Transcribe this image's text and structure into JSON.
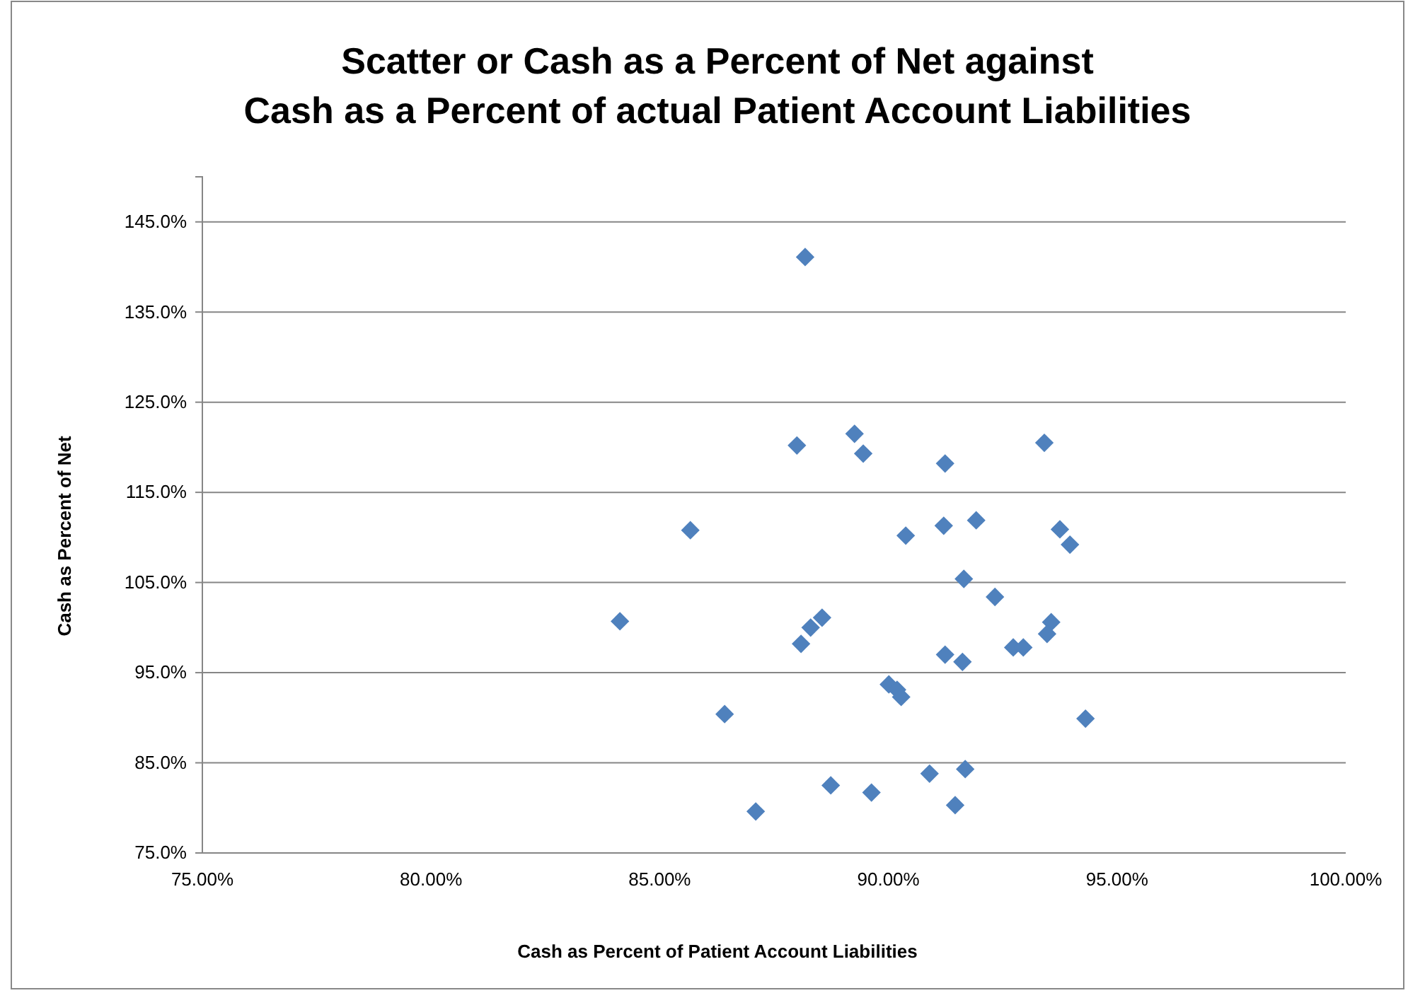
{
  "chart_data": {
    "type": "scatter",
    "title": "Scatter or Cash as a Percent of Net against\nCash as a Percent of actual Patient Account Liabilities",
    "xlabel": "Cash as Percent of Patient Account Liabilities",
    "ylabel": "Cash as Percent of Net",
    "x": [
      88.18,
      89.26,
      88.0,
      89.45,
      91.24,
      93.41,
      85.67,
      90.38,
      91.21,
      91.92,
      93.75,
      93.97,
      91.65,
      92.33,
      84.13,
      88.55,
      88.3,
      88.09,
      93.56,
      93.47,
      92.73,
      92.95,
      91.24,
      91.62,
      90.01,
      90.19,
      90.28,
      86.42,
      94.31,
      90.9,
      91.68,
      88.74,
      89.63,
      91.46,
      87.1
    ],
    "series": [
      {
        "color": "#4f81bd",
        "values": [
          141.1,
          121.5,
          120.2,
          119.3,
          118.2,
          120.5,
          110.8,
          110.2,
          111.3,
          111.9,
          110.9,
          109.2,
          105.4,
          103.4,
          100.7,
          101.1,
          100.0,
          98.2,
          100.6,
          99.3,
          97.8,
          97.8,
          97.0,
          96.2,
          93.7,
          93.1,
          92.3,
          90.4,
          89.9,
          83.8,
          84.3,
          82.5,
          81.7,
          80.3,
          79.6
        ]
      }
    ],
    "xlim": [
      75,
      100
    ],
    "xticks": [
      {
        "value": 75,
        "label": "75.00%"
      },
      {
        "value": 80,
        "label": "80.00%"
      },
      {
        "value": 85,
        "label": "85.00%"
      },
      {
        "value": 90,
        "label": "90.00%"
      },
      {
        "value": 95,
        "label": "95.00%"
      },
      {
        "value": 100,
        "label": "100.00%"
      }
    ],
    "ylim": [
      75,
      150
    ],
    "yticks": [
      {
        "value": 75,
        "label": "75.0%"
      },
      {
        "value": 85,
        "label": "85.0%"
      },
      {
        "value": 95,
        "label": "95.0%"
      },
      {
        "value": 105,
        "label": "105.0%"
      },
      {
        "value": 115,
        "label": "115.0%"
      },
      {
        "value": 125,
        "label": "125.0%"
      },
      {
        "value": 135,
        "label": "135.0%"
      },
      {
        "value": 145,
        "label": "145.0%"
      }
    ],
    "grid": "y",
    "marker": "diamond"
  }
}
